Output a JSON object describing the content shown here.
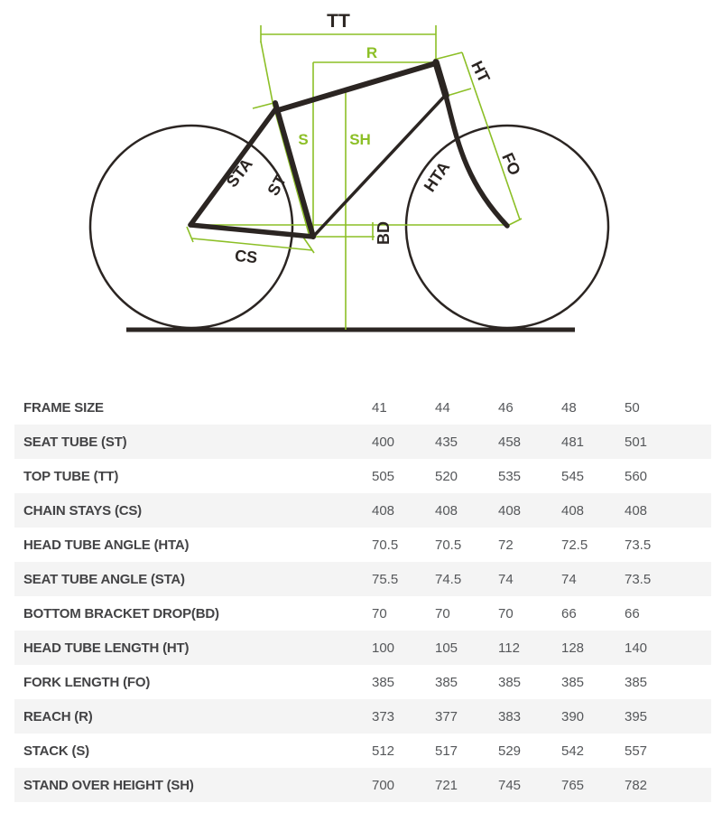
{
  "diagram": {
    "labels": {
      "tt": "TT",
      "r": "R",
      "ht": "HT",
      "s": "S",
      "sh": "SH",
      "fo": "FO",
      "sta": "STA",
      "st": "ST",
      "hta": "HTA",
      "cs": "CS",
      "bd": "BD"
    },
    "colors": {
      "accent_green": "#8CBF26",
      "line_dark": "#2b2522"
    }
  },
  "table": {
    "rows": [
      {
        "label": "FRAME SIZE",
        "values": [
          "41",
          "44",
          "46",
          "48",
          "50"
        ]
      },
      {
        "label": "SEAT TUBE (ST)",
        "values": [
          "400",
          "435",
          "458",
          "481",
          "501"
        ]
      },
      {
        "label": "TOP TUBE (TT)",
        "values": [
          "505",
          "520",
          "535",
          "545",
          "560"
        ]
      },
      {
        "label": "CHAIN STAYS (CS)",
        "values": [
          "408",
          "408",
          "408",
          "408",
          "408"
        ]
      },
      {
        "label": "HEAD TUBE ANGLE (HTA)",
        "values": [
          "70.5",
          "70.5",
          "72",
          "72.5",
          "73.5"
        ]
      },
      {
        "label": "SEAT TUBE ANGLE (STA)",
        "values": [
          "75.5",
          "74.5",
          "74",
          "74",
          "73.5"
        ]
      },
      {
        "label": "BOTTOM BRACKET DROP(BD)",
        "values": [
          "70",
          "70",
          "70",
          "66",
          "66"
        ]
      },
      {
        "label": "HEAD TUBE LENGTH (HT)",
        "values": [
          "100",
          "105",
          "112",
          "128",
          "140"
        ]
      },
      {
        "label": "FORK LENGTH (FO)",
        "values": [
          "385",
          "385",
          "385",
          "385",
          "385"
        ]
      },
      {
        "label": "REACH (R)",
        "values": [
          "373",
          "377",
          "383",
          "390",
          "395"
        ]
      },
      {
        "label": "STACK (S)",
        "values": [
          "512",
          "517",
          "529",
          "542",
          "557"
        ]
      },
      {
        "label": "STAND OVER HEIGHT (SH)",
        "values": [
          "700",
          "721",
          "745",
          "765",
          "782"
        ]
      }
    ]
  },
  "chart_data": {
    "type": "table",
    "title": "Bike frame geometry chart",
    "columns": [
      "41",
      "44",
      "46",
      "48",
      "50"
    ],
    "rows": [
      {
        "label": "FRAME SIZE",
        "values": [
          41,
          44,
          46,
          48,
          50
        ]
      },
      {
        "label": "SEAT TUBE (ST)",
        "values": [
          400,
          435,
          458,
          481,
          501
        ]
      },
      {
        "label": "TOP TUBE (TT)",
        "values": [
          505,
          520,
          535,
          545,
          560
        ]
      },
      {
        "label": "CHAIN STAYS (CS)",
        "values": [
          408,
          408,
          408,
          408,
          408
        ]
      },
      {
        "label": "HEAD TUBE ANGLE (HTA)",
        "values": [
          70.5,
          70.5,
          72,
          72.5,
          73.5
        ]
      },
      {
        "label": "SEAT TUBE ANGLE (STA)",
        "values": [
          75.5,
          74.5,
          74,
          74,
          73.5
        ]
      },
      {
        "label": "BOTTOM BRACKET DROP(BD)",
        "values": [
          70,
          70,
          70,
          66,
          66
        ]
      },
      {
        "label": "HEAD TUBE LENGTH (HT)",
        "values": [
          100,
          105,
          112,
          128,
          140
        ]
      },
      {
        "label": "FORK LENGTH (FO)",
        "values": [
          385,
          385,
          385,
          385,
          385
        ]
      },
      {
        "label": "REACH (R)",
        "values": [
          373,
          377,
          383,
          390,
          395
        ]
      },
      {
        "label": "STACK (S)",
        "values": [
          512,
          517,
          529,
          542,
          557
        ]
      },
      {
        "label": "STAND OVER HEIGHT (SH)",
        "values": [
          700,
          721,
          745,
          765,
          782
        ]
      }
    ]
  }
}
